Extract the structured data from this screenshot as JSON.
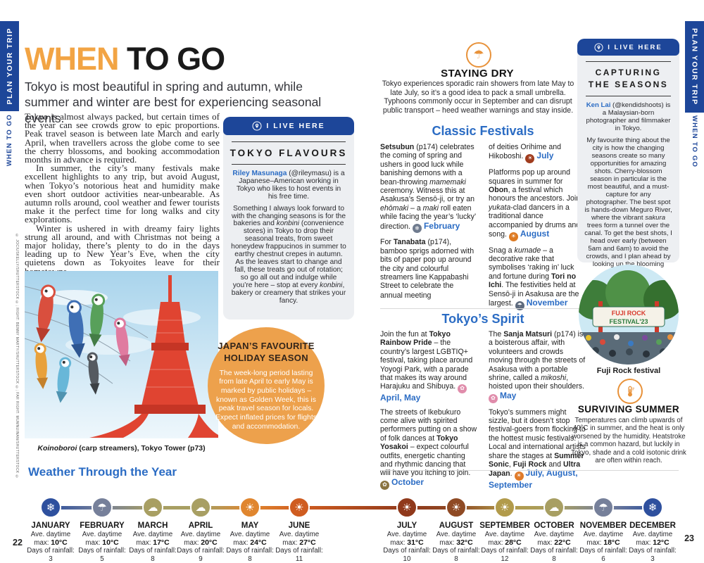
{
  "meta": {
    "left_page_number": "22",
    "right_page_number": "23",
    "sidebar": {
      "section": "PLAN YOUR TRIP",
      "chapter": "WHEN TO GO"
    },
    "credit": "© JOCIUSKELLY/SHUTTERSTOCK ©; RIGHT: BENNY MARTY/SHUTTERSTOCK ©; FAR RIGHT: MUMNUINAN/SHUTTERSTOCK ©"
  },
  "colors": {
    "brand_blue": "#1d4699",
    "link_blue": "#2b6cc4",
    "accent_orange": "#f2a444",
    "box_gray": "#edeff2",
    "circle_orange": "#eda14c"
  },
  "header": {
    "title_accent": "WHEN",
    "title_rest": " TO GO",
    "subtitle": "Tokyo is most beautiful in spring and autumn, while summer and winter are best for experiencing seasonal events."
  },
  "intro": {
    "p1": "Tokyo is almost always packed, but certain times of the year can see crowds grow to epic proportions. Peak travel season is between late March and early April, when travellers across the globe come to see the cherry blossoms, and booking accommodation months in advance is required.",
    "p2": "In summer, the city’s many festivals make excellent highlights to any trip, but avoid August, when Tokyo’s notorious heat and humidity make even short outdoor activities near-unbearable. As autumn rolls around, cool weather and fewer tourists make it the perfect time for long walks and city explorations.",
    "p3": "Winter is ushered in with dreamy fairy lights strung all around, and with Christmas not being a major holiday, there’s plenty to do in the days leading up to New Year’s Eve, when the city quietens down as Tokyoites leave for their hometowns."
  },
  "photo1_caption": "<i>Koinoboroi</i> (carp streamers), Tokyo Tower (p73)",
  "flavours": {
    "badge": "I LIVE HERE",
    "title": "TOKYO FLAVOURS",
    "intro": "<b class='nm'>Riley Masunaga</b> (@rileymasu) is a Japanese–American working in Tokyo who likes to host events in his free time.",
    "body": "Something I always look forward to with the changing seasons is for the bakeries and <i>konbini</i> (convenience stores) in Tokyo to drop their seasonal treats, from sweet honeydew frappucinos in summer to earthy chestnut crepes in autumn. As the leaves start to change and fall, these treats go out of rotation; so go all out and indulge while you’re here – stop at every <i>konbini</i>, bakery or creamery that strikes your fancy."
  },
  "holiday": {
    "title": "JAPAN’S FAVOURITE HOLIDAY SEASON",
    "body": "The week-long period lasting from late April to early May is marked by public holidays – known as Golden Week, this is peak travel season for locals. Expect inflated prices for flights and accommodation."
  },
  "staying_dry": {
    "icon": "☂",
    "title": "STAYING DRY",
    "body": "Tokyo experiences sporadic rain showers from late May to late July, so it’s a good idea to pack a small umbrella. Typhoons commonly occur in September and can disrupt public transport – heed weather warnings and stay inside."
  },
  "classic": {
    "title": "Classic Festivals",
    "col1": [
      {
        "html": "<b>Setsubun</b> (p174) celebrates the coming of spring and ushers in good luck while banishing demons with a bean-throwing <i>mamemaki</i> ceremony. Witness this at Asakusa’s Sensō-ji, or try an <i>ehōmaki</i> – a <i>maki</i> roll eaten while facing the year’s ‘lucky’ direction.",
        "months": "February",
        "glyph": "❄",
        "dot": "background:#6f7b8e"
      },
      {
        "html": "For <b>Tanabata</b> (p174), bamboo sprigs adorned with bits of paper pop up around the city and colourful streamers line Kappabashi Street to celebrate the annual meeting",
        "months": "",
        "glyph": "",
        "dot": "display:none"
      }
    ],
    "col2": [
      {
        "html": "of deities Orihime and Hikoboshi.",
        "months": "July",
        "glyph": "☀",
        "dot": "background:#a03c1e"
      },
      {
        "html": "Platforms pop up around squares in summer for <b>Obon</b>, a festival which honours the ancestors. Join <i>yukata</i>-clad dancers in a traditional dance accompanied by drums and song.",
        "months": "August",
        "glyph": "☀",
        "dot": "background:#dd7a22"
      },
      {
        "html": "Snag a <i>kumade</i> – a decorative rake that symbolises ‘raking in’ luck and fortune during <b>Tori no Ichi</b>. The festivities held at Sensō-ji in Asakusa are the largest.",
        "months": "November",
        "glyph": "☂",
        "dot": "background:#5d6a7d"
      }
    ]
  },
  "spirit": {
    "title": "Tokyo’s Spirit",
    "col1": [
      {
        "html": "Join the fun at <b>Tokyo Rainbow Pride</b> – the country’s largest LGBTIQ+ festival, taking place around Yoyogi Park, with a parade that makes its way around Harajuku and Shibuya.",
        "months": "April, May",
        "glyph": "✿",
        "dot": "background:#e08cab"
      },
      {
        "html": "The streets of Ikebukuro come alive with spirited performers putting on a show of folk dances at <b>Tokyo Yosakoi</b> – expect colourful outfits, energetic chanting and rhythmic dancing that will have you itching to join.",
        "months": "October",
        "glyph": "✿",
        "dot": "background:#8a7340"
      }
    ],
    "col2": [
      {
        "html": "The <b>Sanja Matsuri</b> (p174) is a boisterous affair, with volunteers and crowds moving through the streets of Asakusa with a portable shrine, called a <i>mikoshi</i>, hoisted upon their shoulders.",
        "months": "May",
        "glyph": "✿",
        "dot": "background:#e08cab"
      },
      {
        "html": "Tokyo’s summers might sizzle, but it doesn’t stop festival-goers from flocking to the hottest music festivals. Local and international artists share the stages at <b>Summer Sonic</b>, <b>Fuji Rock</b> and <b>Ultra Japan</b>.",
        "months": "July, August, September",
        "glyph": "☀",
        "dot": "background:#e07b2a"
      }
    ]
  },
  "capturing": {
    "badge": "I LIVE HERE",
    "title_line1": "CAPTURING",
    "title_line2": "THE SEASONS",
    "intro": "<b class='nm'>Ken Lai</b> (@kendidshoots) is a Malaysian-born photographer and filmmaker in Tokyo.",
    "body": "My favourite thing about the city is how the changing seasons create so many opportunities for amazing shots. Cherry-blossom season in particular is the most beautiful, and a must-capture for any photographer. The best spot is hands-down Meguro River, where the vibrant <i>sakura</i> trees form a tunnel over the canal. To get the best shots, I head over early (between 5am and 6am) to avoid the crowds, and I plan ahead by looking up the blooming forecasts."
  },
  "photo2_caption": "Fuji Rock festival",
  "photo2_sign_line1": "FUJI ROCK",
  "photo2_sign_line2": "FESTIVAL'23",
  "surviving": {
    "title": "SURVIVING SUMMER",
    "body": "Temperatures can climb upwards of 40°C in summer, and the heat is only worsened by the humidity. Heatstroke is a common hazard, but luckily in Tokyo, shade and a cold isotonic drink are often within reach."
  },
  "weather": {
    "title": "Weather Through the Year",
    "months": [
      {
        "name": "JANUARY",
        "ave_label": "Ave. daytime",
        "max_label": "max:",
        "temp": "10°C",
        "days_label": "Days of rainfall:",
        "rain": "3",
        "icon": "❄",
        "icon_style": "background:#2e509e",
        "cell_style": "left:26px"
      },
      {
        "name": "FEBRUARY",
        "ave_label": "Ave. daytime",
        "max_label": "max:",
        "temp": "10°C",
        "days_label": "Days of rainfall:",
        "rain": "5",
        "icon": "☂",
        "icon_style": "background:#76809a",
        "cell_style": "left:99px"
      },
      {
        "name": "MARCH",
        "ave_label": "Ave. daytime",
        "max_label": "max:",
        "temp": "17°C",
        "days_label": "Days of rainfall:",
        "rain": "8",
        "icon": "☁",
        "icon_style": "background:#a89f63",
        "cell_style": "left:171px"
      },
      {
        "name": "APRIL",
        "ave_label": "Ave. daytime",
        "max_label": "max:",
        "temp": "20°C",
        "days_label": "Days of rainfall:",
        "rain": "9",
        "icon": "☁",
        "icon_style": "background:#a89f63",
        "cell_style": "left:239px"
      },
      {
        "name": "MAY",
        "ave_label": "Ave. daytime",
        "max_label": "max:",
        "temp": "24°C",
        "days_label": "Days of rainfall:",
        "rain": "8",
        "icon": "☀",
        "icon_style": "background:#e0862f",
        "cell_style": "left:309px"
      },
      {
        "name": "JUNE",
        "ave_label": "Ave. daytime",
        "max_label": "max:",
        "temp": "27°C",
        "days_label": "Days of rainfall:",
        "rain": "11",
        "icon": "☀",
        "icon_style": "background:#cf5c20",
        "cell_style": "left:379px"
      },
      {
        "name": "JULY",
        "ave_label": "Ave. daytime",
        "max_label": "max:",
        "temp": "31°C",
        "days_label": "Days of rainfall:",
        "rain": "10",
        "icon": "☀",
        "icon_style": "background:#90391b",
        "cell_style": "left:532px"
      },
      {
        "name": "AUGUST",
        "ave_label": "Ave. daytime",
        "max_label": "max:",
        "temp": "32°C",
        "days_label": "Days of rainfall:",
        "rain": "8",
        "icon": "☀",
        "icon_style": "background:#8f4a24",
        "cell_style": "left:602px"
      },
      {
        "name": "SEPTEMBER",
        "ave_label": "Ave. daytime",
        "max_label": "max:",
        "temp": "28°C",
        "days_label": "Days of rainfall:",
        "rain": "12",
        "icon": "☀",
        "icon_style": "background:#b29b4b",
        "cell_style": "left:671px"
      },
      {
        "name": "OCTOBER",
        "ave_label": "Ave. daytime",
        "max_label": "max:",
        "temp": "22°C",
        "days_label": "Days of rainfall:",
        "rain": "8",
        "icon": "☁",
        "icon_style": "background:#a89f63",
        "cell_style": "left:741px"
      },
      {
        "name": "NOVEMBER",
        "ave_label": "Ave. daytime",
        "max_label": "max:",
        "temp": "18°C",
        "days_label": "Days of rainfall:",
        "rain": "6",
        "icon": "☂",
        "icon_style": "background:#76809a",
        "cell_style": "left:811px"
      },
      {
        "name": "DECEMBER",
        "ave_label": "Ave. daytime",
        "max_label": "max:",
        "temp": "12°C",
        "days_label": "Days of rainfall:",
        "rain": "3",
        "icon": "❄",
        "icon_style": "background:#2e509e",
        "cell_style": "left:881px"
      }
    ]
  }
}
